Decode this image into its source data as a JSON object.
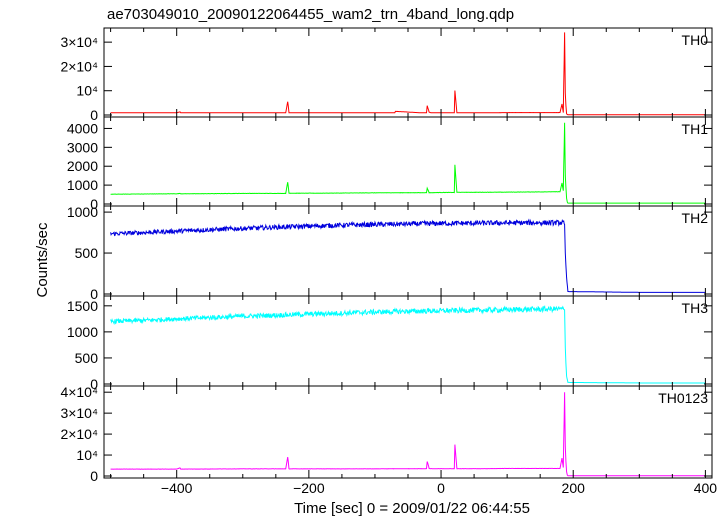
{
  "title": "ae703049010_20090122064455_wam2_trn_4band_long.qdp",
  "ylabel": "Counts/sec",
  "xlabel": "Time [sec] 0 = 2009/01/22 06:44:55",
  "chart_data": [
    {
      "type": "line",
      "name": "TH0",
      "color": "#ff0000",
      "xlim": [
        -510,
        410
      ],
      "ylim": [
        0,
        35000
      ],
      "yticks": [
        {
          "v": 0,
          "t": "0"
        },
        {
          "v": 10000,
          "t": "10⁴"
        },
        {
          "v": 20000,
          "t": "2×10⁴"
        },
        {
          "v": 30000,
          "t": "3×10⁴"
        }
      ],
      "x": [
        -500,
        -400,
        -395,
        -394,
        -300,
        -235,
        -232,
        -230,
        -225,
        -150,
        -100,
        -70,
        -69,
        -30,
        -22,
        -21,
        -18,
        -15,
        0,
        15,
        20,
        21,
        24,
        30,
        60,
        100,
        150,
        180,
        183,
        185,
        187,
        188,
        189,
        190,
        191,
        192,
        300,
        400
      ],
      "y": [
        900,
        900,
        1300,
        900,
        900,
        900,
        5500,
        900,
        900,
        900,
        900,
        900,
        1500,
        900,
        900,
        3800,
        1200,
        900,
        900,
        900,
        900,
        10000,
        900,
        900,
        900,
        1000,
        1000,
        1000,
        4500,
        1000,
        34000,
        9000,
        4000,
        500,
        200,
        100,
        100,
        100
      ]
    },
    {
      "type": "line",
      "name": "TH1",
      "color": "#00ff00",
      "xlim": [
        -510,
        410
      ],
      "ylim": [
        0,
        4500
      ],
      "yticks": [
        {
          "v": 0,
          "t": "0"
        },
        {
          "v": 1000,
          "t": "1000"
        },
        {
          "v": 2000,
          "t": "2000"
        },
        {
          "v": 3000,
          "t": "3000"
        },
        {
          "v": 4000,
          "t": "4000"
        }
      ],
      "x": [
        -500,
        -400,
        -395,
        -394,
        -300,
        -235,
        -232,
        -230,
        -225,
        -150,
        -100,
        -30,
        -22,
        -21,
        -18,
        -15,
        0,
        20,
        21,
        24,
        60,
        100,
        150,
        180,
        183,
        185,
        187,
        188,
        189,
        190,
        191,
        192,
        300,
        400
      ],
      "y": [
        520,
        540,
        560,
        540,
        560,
        560,
        1150,
        570,
        570,
        580,
        590,
        600,
        600,
        840,
        600,
        600,
        610,
        610,
        2050,
        620,
        620,
        630,
        640,
        650,
        1100,
        700,
        4300,
        1500,
        900,
        300,
        100,
        50,
        50,
        50
      ]
    },
    {
      "type": "line",
      "name": "TH2",
      "color": "#0000dd",
      "xlim": [
        -510,
        410
      ],
      "ylim": [
        0,
        1050
      ],
      "yticks": [
        {
          "v": 0,
          "t": "0"
        },
        {
          "v": 500,
          "t": "500"
        },
        {
          "v": 1000,
          "t": "1000"
        }
      ],
      "x": [
        -500,
        -450,
        -400,
        -350,
        -300,
        -250,
        -200,
        -150,
        -100,
        -50,
        0,
        50,
        100,
        150,
        185,
        187,
        188,
        189,
        190,
        192,
        300,
        400
      ],
      "y": [
        735,
        750,
        768,
        785,
        800,
        815,
        828,
        840,
        848,
        855,
        862,
        865,
        868,
        870,
        870,
        850,
        500,
        350,
        200,
        30,
        20,
        20
      ]
    },
    {
      "type": "line",
      "name": "TH3",
      "color": "#00ffff",
      "xlim": [
        -510,
        410
      ],
      "ylim": [
        0,
        1650
      ],
      "yticks": [
        {
          "v": 0,
          "t": "0"
        },
        {
          "v": 500,
          "t": "500"
        },
        {
          "v": 1000,
          "t": "1000"
        },
        {
          "v": 1500,
          "t": "1500"
        }
      ],
      "x": [
        -500,
        -450,
        -400,
        -350,
        -300,
        -250,
        -200,
        -150,
        -100,
        -50,
        0,
        50,
        100,
        150,
        185,
        187,
        188,
        189,
        190,
        192,
        300,
        400
      ],
      "y": [
        1200,
        1220,
        1250,
        1275,
        1300,
        1320,
        1340,
        1360,
        1380,
        1395,
        1405,
        1415,
        1425,
        1435,
        1440,
        1420,
        700,
        400,
        150,
        30,
        20,
        20
      ]
    },
    {
      "type": "line",
      "name": "TH0123",
      "color": "#ff00ff",
      "xlim": [
        -510,
        410
      ],
      "ylim": [
        0,
        42000
      ],
      "yticks": [
        {
          "v": 0,
          "t": "0"
        },
        {
          "v": 10000,
          "t": "10⁴"
        },
        {
          "v": 20000,
          "t": "2×10⁴"
        },
        {
          "v": 30000,
          "t": "3×10⁴"
        },
        {
          "v": 40000,
          "t": "4×10⁴"
        }
      ],
      "x": [
        -500,
        -400,
        -395,
        -394,
        -300,
        -235,
        -232,
        -230,
        -225,
        -150,
        -100,
        -30,
        -22,
        -21,
        -18,
        -15,
        0,
        20,
        21,
        24,
        60,
        100,
        150,
        180,
        183,
        185,
        187,
        188,
        189,
        190,
        191,
        192,
        300,
        400
      ],
      "y": [
        3300,
        3300,
        3900,
        3300,
        3400,
        3400,
        9000,
        3400,
        3400,
        3400,
        3400,
        3500,
        3500,
        7000,
        3600,
        3500,
        3500,
        3500,
        15000,
        3500,
        3500,
        3600,
        3600,
        3600,
        8500,
        4000,
        40000,
        14000,
        7000,
        2000,
        500,
        100,
        100,
        100
      ]
    }
  ],
  "xaxis": {
    "ticks": [
      {
        "v": -400,
        "t": "−400"
      },
      {
        "v": -200,
        "t": "−200"
      },
      {
        "v": 0,
        "t": "0"
      },
      {
        "v": 200,
        "t": "200"
      },
      {
        "v": 400,
        "t": "400"
      }
    ]
  }
}
